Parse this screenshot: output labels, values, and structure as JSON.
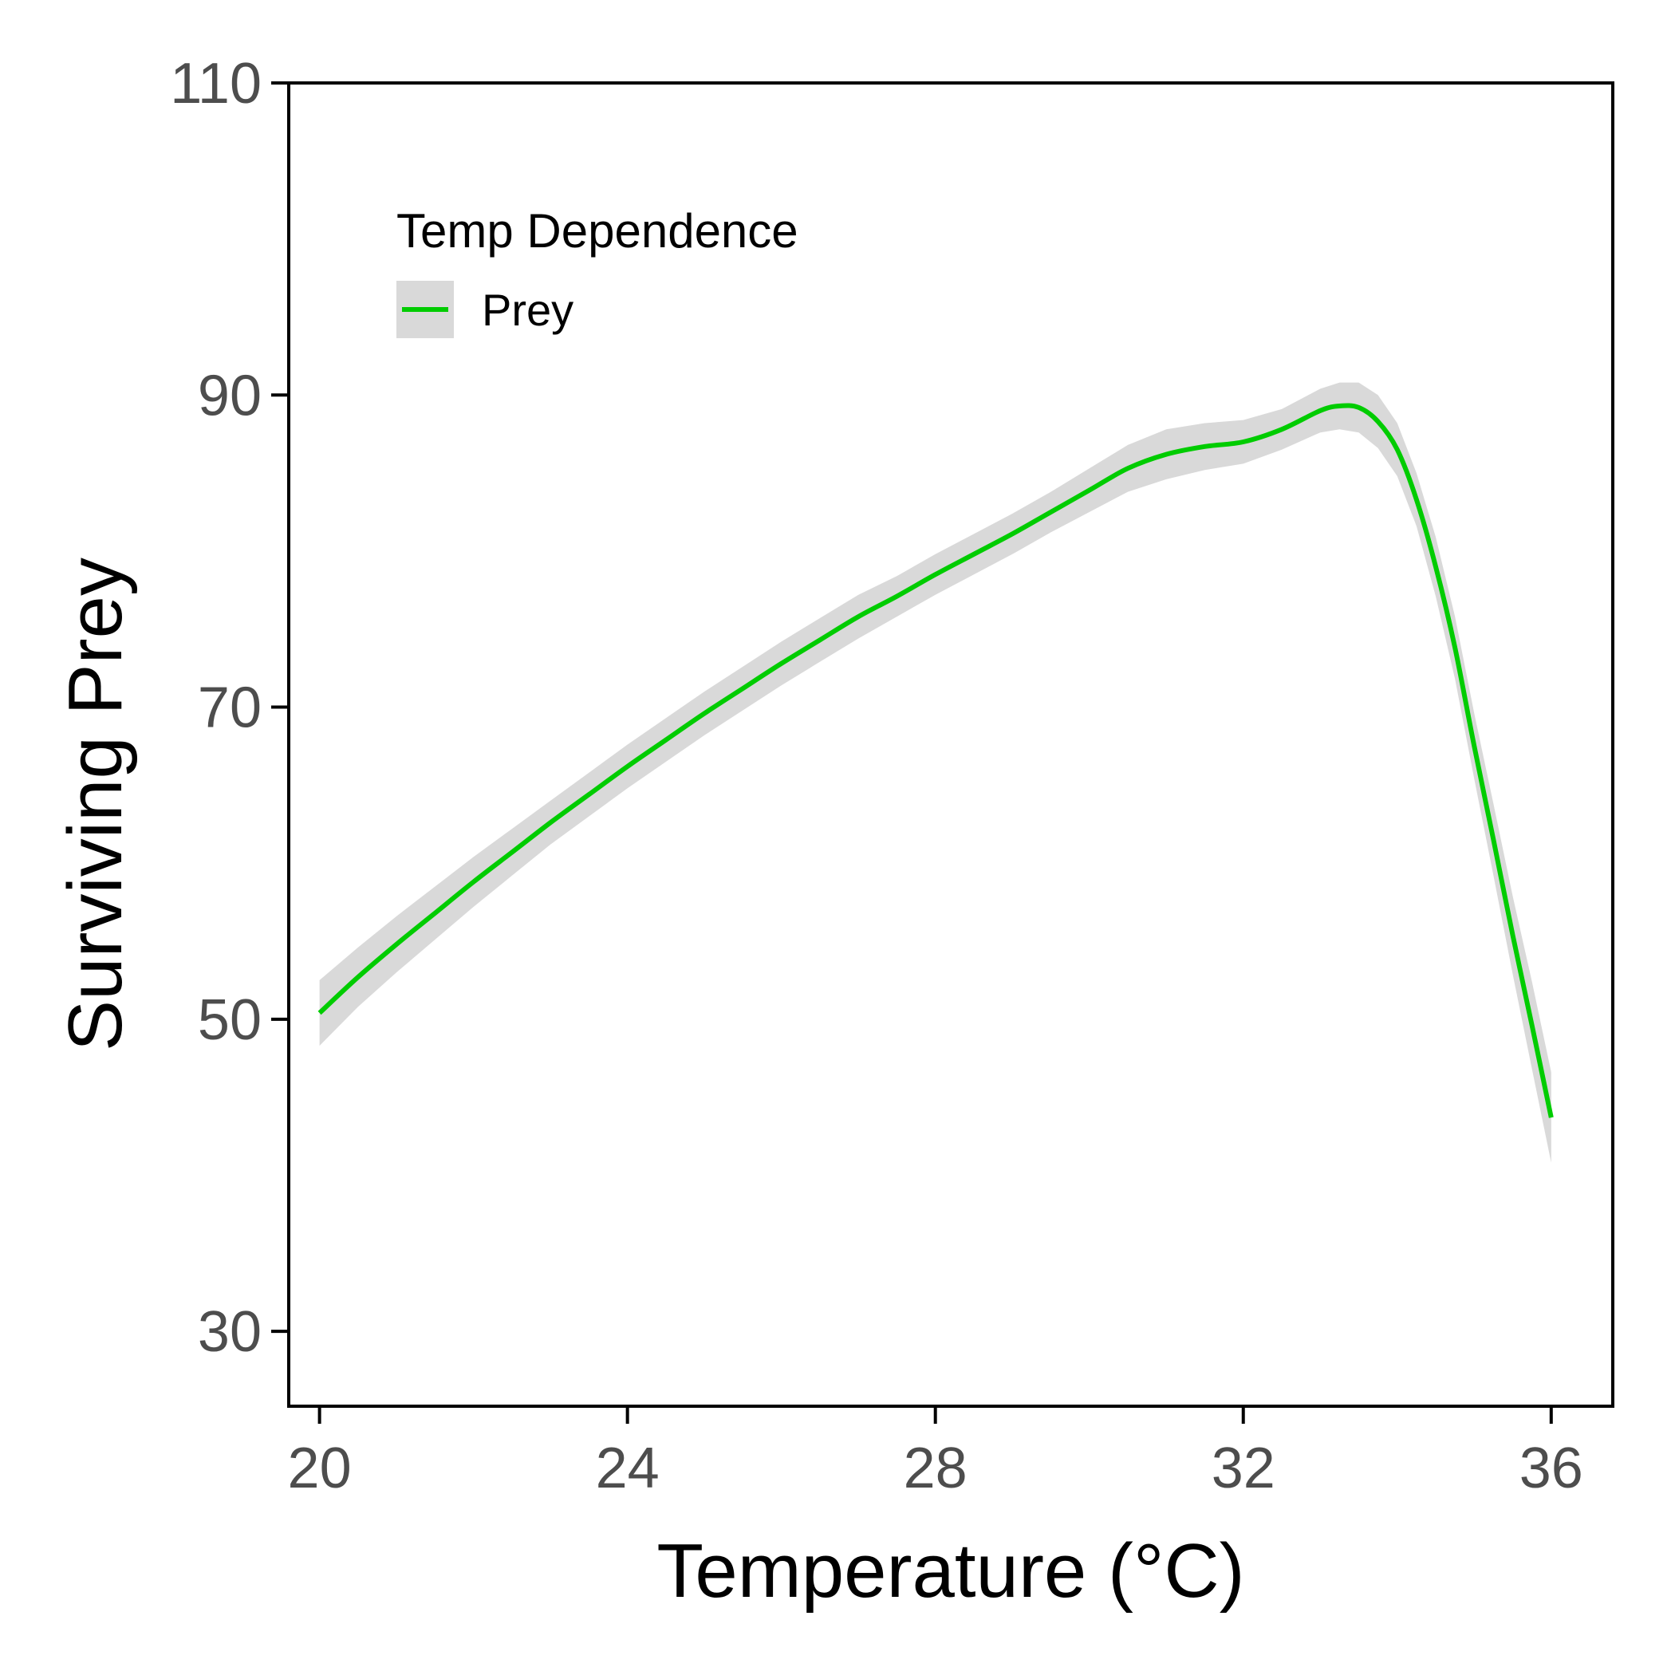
{
  "chart_data": {
    "type": "line",
    "title": "",
    "xlabel": "Temperature (°C)",
    "ylabel": "Surviving Prey",
    "xlim": [
      19.6,
      36.8
    ],
    "ylim": [
      25.2,
      110
    ],
    "xticks": [
      20,
      24,
      28,
      32,
      36
    ],
    "yticks": [
      30,
      50,
      70,
      90,
      110
    ],
    "grid": false,
    "legend": {
      "title": "Temp Dependence",
      "placement": "top-left",
      "entries": [
        "Prey"
      ]
    },
    "colors": {
      "line": "#00cc00",
      "ribbon": "#d9d9d9",
      "axis": "#000000",
      "tick_label": "#4d4d4d"
    },
    "series": [
      {
        "name": "Prey",
        "x": [
          20,
          20.5,
          21,
          21.5,
          22,
          22.5,
          23,
          23.5,
          24,
          24.5,
          25,
          25.5,
          26,
          26.5,
          27,
          27.5,
          28,
          28.5,
          29,
          29.5,
          30,
          30.5,
          31,
          31.5,
          32,
          32.5,
          33,
          33.25,
          33.5,
          33.75,
          34,
          34.25,
          34.5,
          34.75,
          35,
          35.25,
          35.5,
          35.75,
          36
        ],
        "y": [
          50.4,
          52.7,
          54.8,
          56.8,
          58.8,
          60.7,
          62.6,
          64.4,
          66.2,
          67.9,
          69.6,
          71.2,
          72.8,
          74.3,
          75.8,
          77.1,
          78.5,
          79.8,
          81.1,
          82.5,
          83.9,
          85.3,
          86.2,
          86.7,
          87.0,
          87.8,
          89.0,
          89.3,
          89.2,
          88.3,
          86.5,
          83.3,
          79.0,
          73.8,
          67.5,
          61.5,
          55.4,
          49.6,
          43.7
        ],
        "ci_low": [
          48.3,
          50.8,
          53.0,
          55.1,
          57.2,
          59.2,
          61.2,
          63.0,
          64.8,
          66.5,
          68.2,
          69.8,
          71.4,
          72.9,
          74.4,
          75.8,
          77.2,
          78.5,
          79.8,
          81.2,
          82.5,
          83.8,
          84.6,
          85.2,
          85.6,
          86.5,
          87.6,
          87.8,
          87.6,
          86.6,
          84.8,
          81.6,
          77.1,
          71.8,
          65.4,
          59.2,
          52.9,
          46.8,
          40.8
        ],
        "ci_high": [
          52.5,
          54.6,
          56.6,
          58.5,
          60.4,
          62.2,
          64.0,
          65.8,
          67.6,
          69.3,
          71.0,
          72.6,
          74.2,
          75.7,
          77.2,
          78.4,
          79.8,
          81.1,
          82.4,
          83.8,
          85.3,
          86.8,
          87.8,
          88.2,
          88.4,
          89.1,
          90.4,
          90.8,
          90.8,
          90.0,
          88.2,
          85.0,
          80.9,
          75.8,
          69.6,
          63.8,
          57.9,
          52.4,
          46.6
        ]
      }
    ]
  }
}
